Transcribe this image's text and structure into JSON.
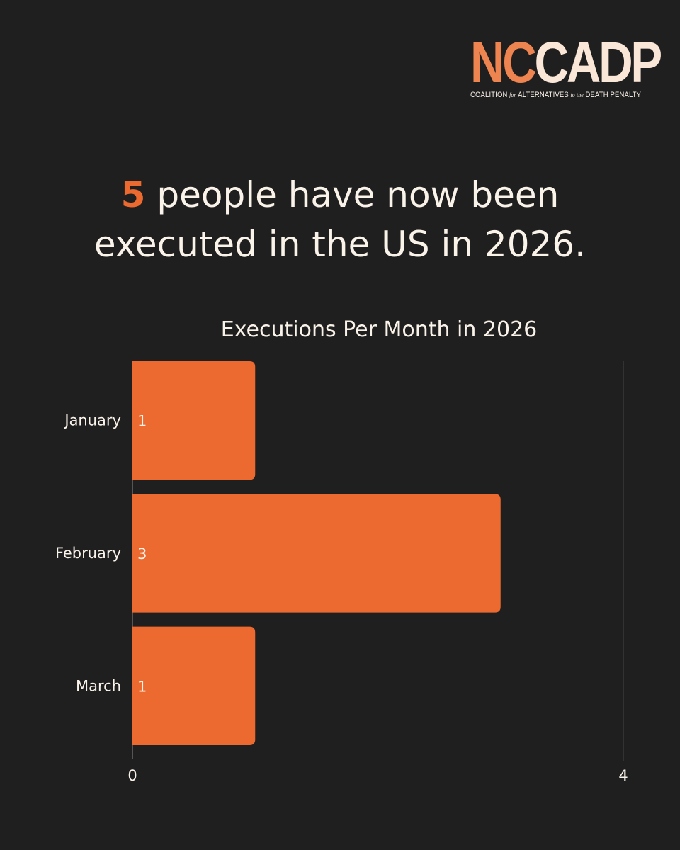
{
  "logo": {
    "mark_nc": "NC",
    "mark_cadp": "CADP",
    "sub_1": "COALITION",
    "sub_2": "for",
    "sub_3": "ALTERNATIVES",
    "sub_4": "to the",
    "sub_5": "DEATH PENALTY"
  },
  "headline": {
    "count": "5",
    "line_1_rest": "people have now been",
    "line_2": "executed in the US in 2026."
  },
  "colors": {
    "background": "#201f1f",
    "bar": "#ec6a2f",
    "accent": "#ec6a2f",
    "text": "#faf3ea",
    "gridline": "#444444"
  },
  "chart_data": {
    "type": "bar",
    "orientation": "horizontal",
    "title": "Executions Per Month in 2026",
    "categories": [
      "January",
      "February",
      "March"
    ],
    "values": [
      1,
      3,
      1
    ],
    "data_labels": [
      "1",
      "3",
      "1"
    ],
    "xlim": [
      0,
      4
    ],
    "x_ticks": [
      "0",
      "4"
    ],
    "grid": false,
    "legend": "none"
  }
}
